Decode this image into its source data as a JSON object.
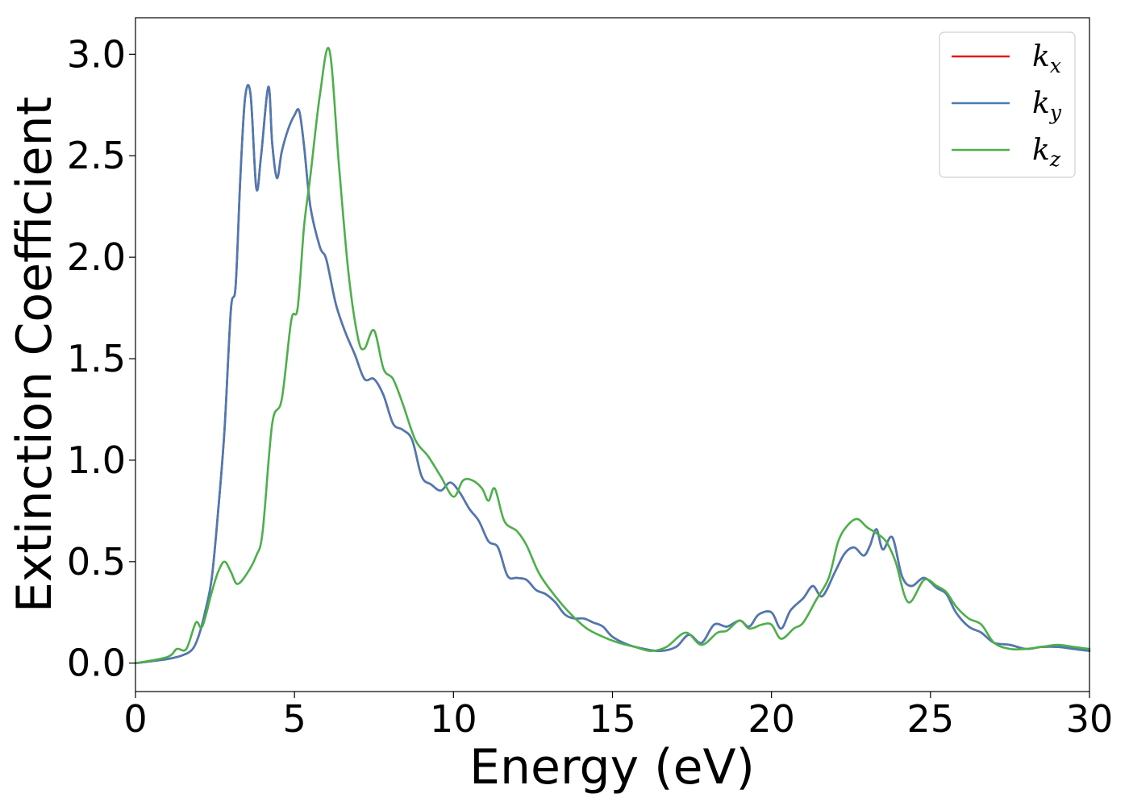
{
  "chart_data": {
    "type": "line",
    "xlabel": "Energy (eV)",
    "ylabel": "Extinction Coefficient",
    "xlim": [
      0,
      30
    ],
    "ylim": [
      -0.14,
      3.18
    ],
    "xticks": [
      0,
      5,
      10,
      15,
      20,
      25,
      30
    ],
    "yticks": [
      0.0,
      0.5,
      1.0,
      1.5,
      2.0,
      2.5,
      3.0
    ],
    "xtick_labels": [
      "0",
      "5",
      "10",
      "15",
      "20",
      "25",
      "30"
    ],
    "ytick_labels": [
      "0.0",
      "0.5",
      "1.0",
      "1.5",
      "2.0",
      "2.5",
      "3.0"
    ],
    "grid": false,
    "legend_position": "top-right",
    "series": [
      {
        "name": "k_x",
        "label_base": "k",
        "label_sub": "x",
        "color": "#e41a1c",
        "x": [
          0,
          1,
          1.5,
          1.8,
          2.0,
          2.2,
          2.4,
          2.6,
          2.8,
          3.0,
          3.15,
          3.3,
          3.45,
          3.62,
          3.8,
          3.95,
          4.18,
          4.3,
          4.45,
          4.6,
          4.8,
          5.0,
          5.15,
          5.3,
          5.5,
          5.8,
          6.0,
          6.3,
          6.6,
          6.9,
          7.2,
          7.5,
          7.8,
          8.1,
          8.4,
          8.7,
          9.0,
          9.3,
          9.6,
          9.9,
          10.2,
          10.5,
          10.8,
          11.1,
          11.4,
          11.7,
          12.0,
          12.3,
          12.6,
          12.9,
          13.2,
          13.5,
          13.8,
          14.1,
          14.4,
          14.7,
          15.0,
          15.5,
          16.0,
          16.5,
          17.0,
          17.4,
          17.8,
          18.2,
          18.6,
          19.0,
          19.3,
          19.6,
          20.0,
          20.3,
          20.6,
          21.0,
          21.3,
          21.6,
          22.0,
          22.3,
          22.6,
          22.9,
          23.1,
          23.3,
          23.5,
          23.8,
          24.1,
          24.4,
          24.8,
          25.2,
          25.5,
          25.8,
          26.2,
          26.6,
          27.0,
          27.5,
          28.0,
          28.5,
          29.0,
          29.5,
          30.0
        ],
        "y": [
          0.0,
          0.02,
          0.04,
          0.07,
          0.14,
          0.26,
          0.42,
          0.75,
          1.15,
          1.74,
          1.86,
          2.4,
          2.79,
          2.8,
          2.34,
          2.5,
          2.84,
          2.56,
          2.39,
          2.52,
          2.63,
          2.7,
          2.72,
          2.55,
          2.25,
          2.05,
          1.99,
          1.77,
          1.63,
          1.52,
          1.4,
          1.4,
          1.32,
          1.18,
          1.15,
          1.1,
          0.92,
          0.88,
          0.85,
          0.89,
          0.84,
          0.76,
          0.7,
          0.6,
          0.57,
          0.43,
          0.42,
          0.41,
          0.36,
          0.34,
          0.3,
          0.24,
          0.22,
          0.22,
          0.2,
          0.18,
          0.13,
          0.09,
          0.07,
          0.06,
          0.08,
          0.14,
          0.1,
          0.19,
          0.18,
          0.21,
          0.18,
          0.24,
          0.25,
          0.17,
          0.26,
          0.32,
          0.38,
          0.33,
          0.45,
          0.54,
          0.57,
          0.53,
          0.58,
          0.66,
          0.56,
          0.62,
          0.43,
          0.38,
          0.42,
          0.37,
          0.34,
          0.25,
          0.18,
          0.15,
          0.1,
          0.09,
          0.07,
          0.08,
          0.08,
          0.07,
          0.06
        ]
      },
      {
        "name": "k_y",
        "label_base": "k",
        "label_sub": "y",
        "color": "#4a7ab5",
        "x": [
          0,
          1,
          1.5,
          1.8,
          2.0,
          2.2,
          2.4,
          2.6,
          2.8,
          3.0,
          3.15,
          3.3,
          3.45,
          3.62,
          3.8,
          3.95,
          4.18,
          4.3,
          4.45,
          4.6,
          4.8,
          5.0,
          5.15,
          5.3,
          5.5,
          5.8,
          6.0,
          6.3,
          6.6,
          6.9,
          7.2,
          7.5,
          7.8,
          8.1,
          8.4,
          8.7,
          9.0,
          9.3,
          9.6,
          9.9,
          10.2,
          10.5,
          10.8,
          11.1,
          11.4,
          11.7,
          12.0,
          12.3,
          12.6,
          12.9,
          13.2,
          13.5,
          13.8,
          14.1,
          14.4,
          14.7,
          15.0,
          15.5,
          16.0,
          16.5,
          17.0,
          17.4,
          17.8,
          18.2,
          18.6,
          19.0,
          19.3,
          19.6,
          20.0,
          20.3,
          20.6,
          21.0,
          21.3,
          21.6,
          22.0,
          22.3,
          22.6,
          22.9,
          23.1,
          23.3,
          23.5,
          23.8,
          24.1,
          24.4,
          24.8,
          25.2,
          25.5,
          25.8,
          26.2,
          26.6,
          27.0,
          27.5,
          28.0,
          28.5,
          29.0,
          29.5,
          30.0
        ],
        "y": [
          0.0,
          0.02,
          0.04,
          0.07,
          0.14,
          0.26,
          0.42,
          0.75,
          1.15,
          1.74,
          1.86,
          2.4,
          2.79,
          2.8,
          2.34,
          2.5,
          2.84,
          2.56,
          2.39,
          2.52,
          2.63,
          2.7,
          2.72,
          2.55,
          2.25,
          2.05,
          1.99,
          1.77,
          1.63,
          1.52,
          1.4,
          1.4,
          1.32,
          1.18,
          1.15,
          1.1,
          0.92,
          0.88,
          0.85,
          0.89,
          0.84,
          0.76,
          0.7,
          0.6,
          0.57,
          0.43,
          0.42,
          0.41,
          0.36,
          0.34,
          0.3,
          0.24,
          0.22,
          0.22,
          0.2,
          0.18,
          0.13,
          0.09,
          0.07,
          0.06,
          0.08,
          0.14,
          0.1,
          0.19,
          0.18,
          0.21,
          0.18,
          0.24,
          0.25,
          0.17,
          0.26,
          0.32,
          0.38,
          0.33,
          0.45,
          0.54,
          0.57,
          0.53,
          0.58,
          0.66,
          0.56,
          0.62,
          0.43,
          0.38,
          0.42,
          0.37,
          0.34,
          0.25,
          0.18,
          0.15,
          0.1,
          0.09,
          0.07,
          0.08,
          0.08,
          0.07,
          0.06
        ]
      },
      {
        "name": "k_z",
        "label_base": "k",
        "label_sub": "z",
        "color": "#4daf4a",
        "x": [
          0,
          1,
          1.3,
          1.6,
          1.9,
          2.1,
          2.4,
          2.6,
          2.8,
          3.0,
          3.2,
          3.5,
          3.8,
          4.0,
          4.3,
          4.6,
          4.9,
          5.1,
          5.3,
          5.5,
          5.8,
          6.1,
          6.4,
          6.7,
          7.0,
          7.2,
          7.5,
          7.8,
          8.1,
          8.4,
          8.8,
          9.2,
          9.6,
          10.0,
          10.3,
          10.6,
          10.9,
          11.1,
          11.3,
          11.6,
          12.0,
          12.3,
          12.7,
          13.2,
          13.7,
          14.2,
          14.7,
          15.2,
          15.7,
          16.2,
          16.7,
          17.3,
          17.8,
          18.3,
          18.6,
          19.0,
          19.3,
          19.7,
          20.0,
          20.3,
          20.7,
          21.0,
          21.4,
          21.8,
          22.1,
          22.4,
          22.7,
          23.0,
          23.3,
          23.6,
          23.9,
          24.3,
          24.8,
          25.2,
          25.5,
          25.8,
          26.2,
          26.6,
          27.0,
          27.5,
          28.0,
          28.5,
          29.0,
          29.5,
          30.0
        ],
        "y": [
          0.0,
          0.03,
          0.07,
          0.07,
          0.2,
          0.18,
          0.35,
          0.45,
          0.5,
          0.45,
          0.39,
          0.44,
          0.53,
          0.65,
          1.18,
          1.3,
          1.69,
          1.75,
          2.15,
          2.4,
          2.8,
          3.02,
          2.45,
          1.92,
          1.6,
          1.55,
          1.64,
          1.45,
          1.4,
          1.28,
          1.1,
          1.02,
          0.92,
          0.82,
          0.9,
          0.9,
          0.86,
          0.8,
          0.86,
          0.7,
          0.65,
          0.58,
          0.44,
          0.33,
          0.24,
          0.17,
          0.13,
          0.1,
          0.08,
          0.06,
          0.08,
          0.15,
          0.09,
          0.15,
          0.16,
          0.21,
          0.17,
          0.19,
          0.19,
          0.12,
          0.17,
          0.2,
          0.31,
          0.42,
          0.6,
          0.68,
          0.71,
          0.67,
          0.64,
          0.6,
          0.5,
          0.3,
          0.41,
          0.38,
          0.35,
          0.28,
          0.22,
          0.19,
          0.1,
          0.07,
          0.07,
          0.08,
          0.09,
          0.08,
          0.07
        ]
      }
    ]
  }
}
